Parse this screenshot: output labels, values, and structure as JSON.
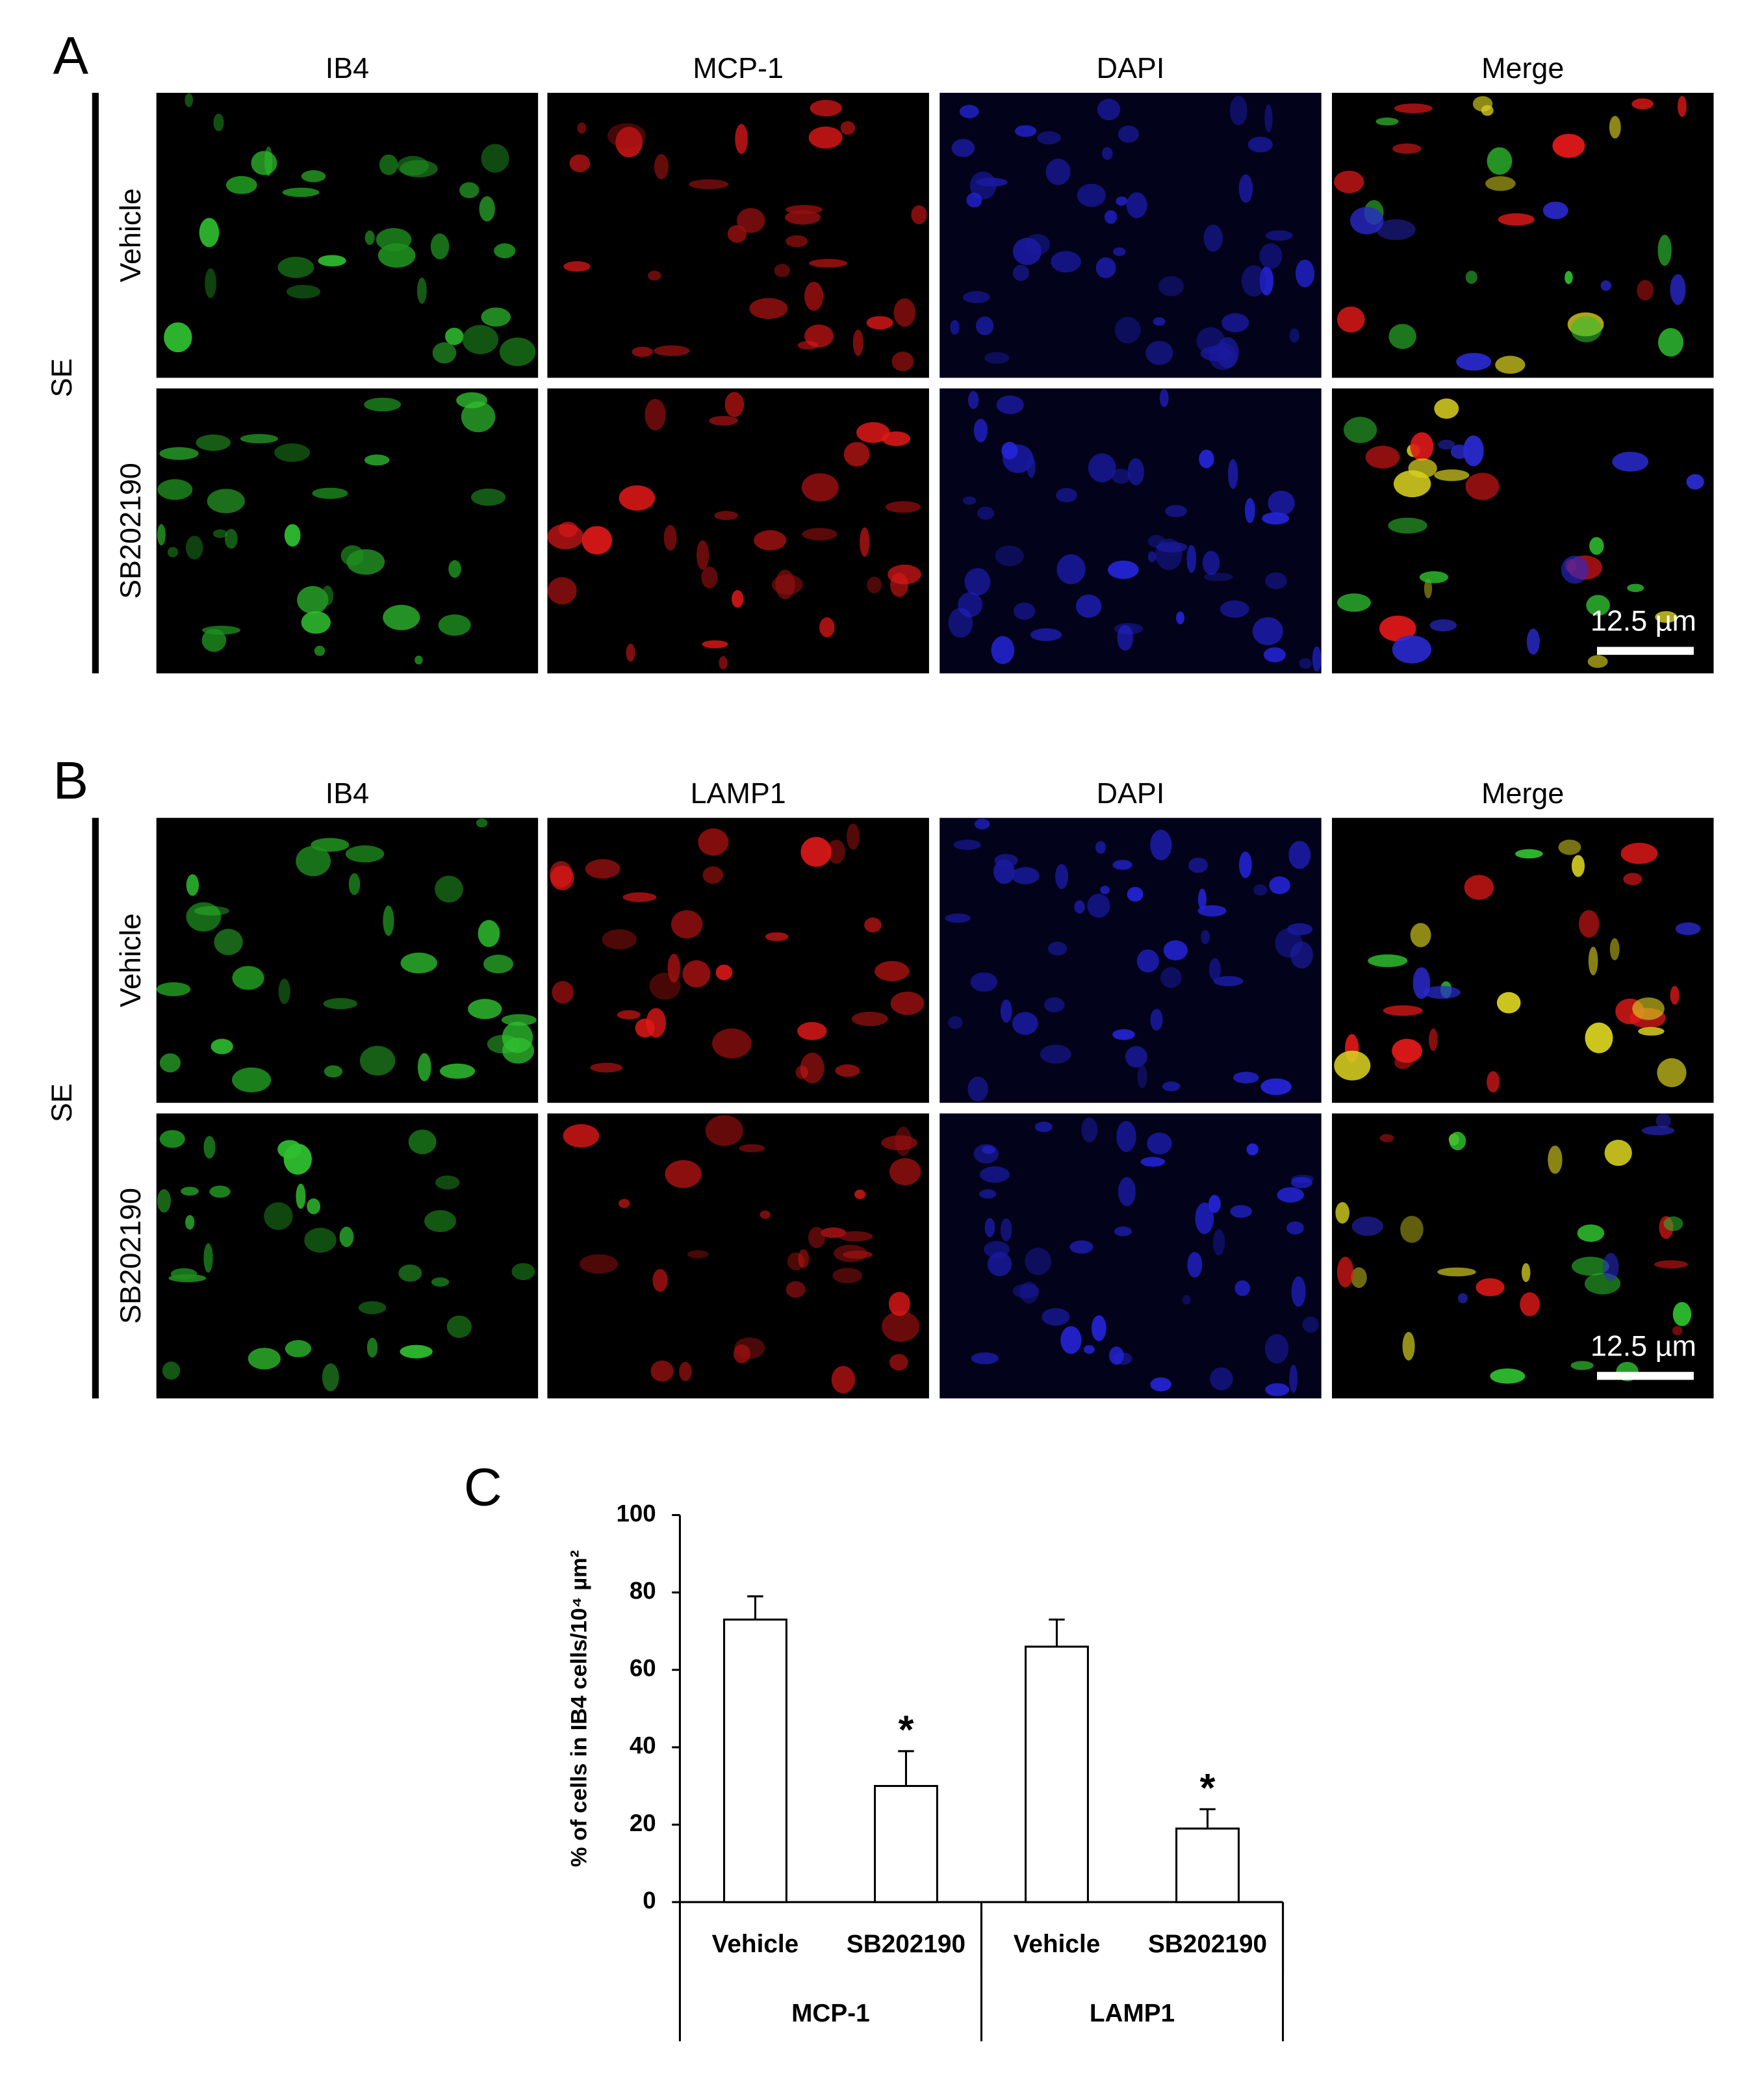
{
  "panels": [
    {
      "label": "A",
      "columns": [
        "IB4",
        "MCP-1",
        "DAPI",
        "Merge"
      ],
      "group": "SE",
      "rows": [
        "Vehicle",
        "SB202190"
      ],
      "scale_bar": "12.5 µm"
    },
    {
      "label": "B",
      "columns": [
        "IB4",
        "LAMP1",
        "DAPI",
        "Merge"
      ],
      "group": "SE",
      "rows": [
        "Vehicle",
        "SB202190"
      ],
      "scale_bar": "12.5 µm"
    }
  ],
  "chart_data": {
    "type": "bar",
    "label": "C",
    "ylabel": "% of cells in IB4 cells/10⁴ µm²",
    "categories": [
      "Vehicle",
      "SB202190",
      "Vehicle",
      "SB202190"
    ],
    "groups": [
      "MCP-1",
      "LAMP1"
    ],
    "values": [
      73,
      30,
      66,
      19
    ],
    "errors": [
      6,
      9,
      7,
      5
    ],
    "value_annotations": [
      null,
      "*",
      null,
      "*"
    ],
    "color": "#ffffff",
    "ylim": [
      0,
      100
    ],
    "yticks": [
      0,
      20,
      40,
      60,
      80,
      100
    ]
  }
}
